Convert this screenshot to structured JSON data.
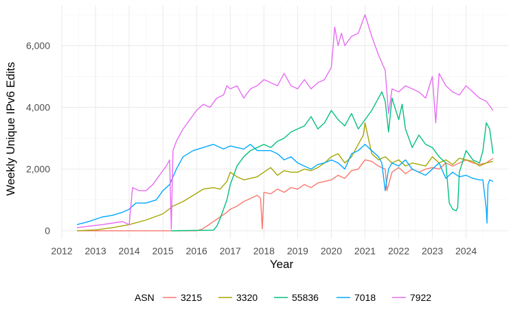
{
  "chart_data": {
    "type": "line",
    "xlabel": "Year",
    "ylabel": "Weekly Unique IPv6 Edits",
    "xlim": [
      2012.0,
      2025.25
    ],
    "ylim": [
      -250,
      7300
    ],
    "x_ticks": [
      2012,
      2013,
      2014,
      2015,
      2016,
      2017,
      2018,
      2019,
      2020,
      2021,
      2022,
      2023,
      2024
    ],
    "x_tick_labels": [
      "2012",
      "2013",
      "2014",
      "2015",
      "2016",
      "2017",
      "2018",
      "2019",
      "2020",
      "2021",
      "2022",
      "2023",
      "2024"
    ],
    "y_ticks": [
      0,
      2000,
      4000,
      6000
    ],
    "y_tick_labels": [
      "0",
      "2,000",
      "4,000",
      "6,000"
    ],
    "grid": true,
    "legend": {
      "title": "ASN",
      "position": "bottom"
    },
    "series": [
      {
        "name": "3215",
        "color": "#F8766D",
        "x": [
          2012.45,
          2016.0,
          2016.15,
          2016.3,
          2016.5,
          2016.7,
          2016.9,
          2017.0,
          2017.2,
          2017.4,
          2017.6,
          2017.8,
          2017.9,
          2017.95,
          2018.0,
          2018.2,
          2018.4,
          2018.6,
          2018.8,
          2019.0,
          2019.2,
          2019.4,
          2019.6,
          2019.8,
          2020.0,
          2020.2,
          2020.4,
          2020.6,
          2020.8,
          2021.0,
          2021.2,
          2021.4,
          2021.6,
          2021.65,
          2021.8,
          2022.0,
          2022.2,
          2022.4,
          2022.6,
          2022.8,
          2023.0,
          2023.2,
          2023.4,
          2023.6,
          2023.8,
          2024.0,
          2024.2,
          2024.4,
          2024.6,
          2024.8
        ],
        "y": [
          0,
          0,
          50,
          150,
          300,
          450,
          600,
          700,
          800,
          950,
          1050,
          1150,
          1050,
          60,
          1250,
          1200,
          1350,
          1250,
          1400,
          1350,
          1500,
          1400,
          1550,
          1600,
          1650,
          1800,
          1700,
          1950,
          2000,
          2300,
          2250,
          2100,
          2000,
          1300,
          1900,
          2050,
          1850,
          2000,
          1900,
          2000,
          2050,
          2000,
          2200,
          2100,
          2200,
          2300,
          2200,
          2150,
          2200,
          2350
        ]
      },
      {
        "name": "3320",
        "color": "#A3A500",
        "x": [
          2012.45,
          2013.0,
          2013.5,
          2014.0,
          2014.5,
          2015.0,
          2015.3,
          2015.6,
          2015.9,
          2016.2,
          2016.5,
          2016.7,
          2016.9,
          2017.0,
          2017.2,
          2017.4,
          2017.6,
          2017.8,
          2018.0,
          2018.2,
          2018.4,
          2018.6,
          2018.8,
          2019.0,
          2019.2,
          2019.4,
          2019.6,
          2019.8,
          2020.0,
          2020.2,
          2020.4,
          2020.6,
          2020.8,
          2020.95,
          2021.0,
          2021.2,
          2021.4,
          2021.6,
          2021.8,
          2022.0,
          2022.2,
          2022.4,
          2022.6,
          2022.8,
          2023.0,
          2023.2,
          2023.4,
          2023.6,
          2023.8,
          2024.0,
          2024.2,
          2024.4,
          2024.6,
          2024.8
        ],
        "y": [
          0,
          30,
          100,
          200,
          350,
          550,
          800,
          950,
          1150,
          1350,
          1400,
          1350,
          1600,
          1900,
          1750,
          1650,
          1700,
          1750,
          1900,
          2050,
          1800,
          1950,
          1900,
          1900,
          2000,
          1950,
          2050,
          2200,
          2400,
          2500,
          2200,
          2400,
          2800,
          3100,
          3500,
          2500,
          2300,
          2400,
          2200,
          2300,
          2100,
          2200,
          2150,
          2100,
          2400,
          2200,
          2300,
          2150,
          2350,
          2300,
          2250,
          2100,
          2200,
          2250
        ]
      },
      {
        "name": "55836",
        "color": "#00BF7D",
        "x": [
          2015.25,
          2016.5,
          2016.6,
          2016.7,
          2016.8,
          2016.9,
          2017.0,
          2017.2,
          2017.4,
          2017.6,
          2017.8,
          2018.0,
          2018.2,
          2018.4,
          2018.6,
          2018.8,
          2019.0,
          2019.2,
          2019.4,
          2019.6,
          2019.8,
          2020.0,
          2020.2,
          2020.4,
          2020.6,
          2020.8,
          2021.0,
          2021.2,
          2021.4,
          2021.5,
          2021.6,
          2021.7,
          2021.8,
          2022.0,
          2022.1,
          2022.2,
          2022.4,
          2022.6,
          2022.8,
          2023.0,
          2023.2,
          2023.4,
          2023.5,
          2023.6,
          2023.7,
          2023.75,
          2023.8,
          2024.0,
          2024.2,
          2024.4,
          2024.5,
          2024.6,
          2024.7,
          2024.8
        ],
        "y": [
          0,
          20,
          150,
          400,
          700,
          1000,
          1500,
          2100,
          2400,
          2600,
          2700,
          2800,
          2700,
          2900,
          3000,
          3200,
          3300,
          3400,
          3700,
          3300,
          3500,
          3900,
          3600,
          3400,
          3800,
          3300,
          3600,
          3900,
          4300,
          4500,
          4200,
          3200,
          4300,
          3600,
          4100,
          3300,
          2700,
          3100,
          2800,
          2700,
          2400,
          2200,
          900,
          700,
          650,
          750,
          1900,
          2600,
          2300,
          2200,
          2600,
          3500,
          3300,
          2500
        ]
      },
      {
        "name": "7018",
        "color": "#00A9FF",
        "x": [
          2012.45,
          2012.8,
          2013.2,
          2013.5,
          2013.8,
          2014.0,
          2014.2,
          2014.5,
          2014.8,
          2015.0,
          2015.2,
          2015.4,
          2015.6,
          2015.9,
          2016.2,
          2016.5,
          2016.8,
          2017.0,
          2017.2,
          2017.4,
          2017.6,
          2017.8,
          2018.0,
          2018.2,
          2018.4,
          2018.6,
          2018.8,
          2019.0,
          2019.2,
          2019.4,
          2019.6,
          2019.8,
          2020.0,
          2020.2,
          2020.4,
          2020.6,
          2020.8,
          2021.0,
          2021.2,
          2021.4,
          2021.5,
          2021.6,
          2021.7,
          2021.8,
          2022.0,
          2022.2,
          2022.4,
          2022.6,
          2022.8,
          2023.0,
          2023.2,
          2023.4,
          2023.6,
          2023.8,
          2024.0,
          2024.2,
          2024.4,
          2024.5,
          2024.6,
          2024.62,
          2024.65,
          2024.7,
          2024.8
        ],
        "y": [
          200,
          300,
          450,
          500,
          600,
          700,
          900,
          900,
          1000,
          1300,
          1500,
          2000,
          2400,
          2600,
          2700,
          2800,
          2650,
          2750,
          2700,
          2650,
          2800,
          2600,
          2600,
          2600,
          2500,
          2300,
          2400,
          2200,
          2100,
          2000,
          2150,
          2200,
          2300,
          2200,
          2000,
          2500,
          2600,
          2800,
          2600,
          2400,
          2200,
          1300,
          2000,
          2200,
          2100,
          2300,
          2000,
          1900,
          1800,
          2000,
          2200,
          1700,
          1900,
          1750,
          1800,
          1700,
          1650,
          1650,
          700,
          250,
          1500,
          1650,
          1600
        ]
      },
      {
        "name": "7922",
        "color": "#E76BF3",
        "x": [
          2012.45,
          2012.8,
          2013.2,
          2013.5,
          2013.8,
          2014.0,
          2014.1,
          2014.3,
          2014.5,
          2014.7,
          2014.9,
          2015.1,
          2015.2,
          2015.25,
          2015.3,
          2015.4,
          2015.6,
          2015.8,
          2016.0,
          2016.2,
          2016.4,
          2016.6,
          2016.8,
          2016.9,
          2017.0,
          2017.2,
          2017.4,
          2017.6,
          2017.8,
          2018.0,
          2018.2,
          2018.4,
          2018.6,
          2018.8,
          2019.0,
          2019.2,
          2019.4,
          2019.6,
          2019.8,
          2020.0,
          2020.1,
          2020.2,
          2020.3,
          2020.4,
          2020.6,
          2020.8,
          2021.0,
          2021.2,
          2021.4,
          2021.6,
          2021.7,
          2021.8,
          2022.0,
          2022.2,
          2022.4,
          2022.6,
          2022.8,
          2023.0,
          2023.1,
          2023.2,
          2023.4,
          2023.6,
          2023.8,
          2024.0,
          2024.2,
          2024.4,
          2024.6,
          2024.8
        ],
        "y": [
          100,
          150,
          200,
          250,
          300,
          200,
          1400,
          1300,
          1300,
          1500,
          1800,
          2100,
          2300,
          50,
          2600,
          2900,
          3300,
          3600,
          3900,
          4100,
          4000,
          4300,
          4400,
          4700,
          4600,
          4700,
          4300,
          4600,
          4700,
          4900,
          4800,
          4700,
          5100,
          4700,
          4600,
          4900,
          4600,
          4800,
          4900,
          5300,
          6600,
          6000,
          6400,
          6000,
          6300,
          6400,
          7000,
          6300,
          5700,
          5200,
          3800,
          4600,
          4500,
          4700,
          4600,
          4500,
          4300,
          5000,
          3500,
          5100,
          4700,
          4500,
          4400,
          4700,
          4500,
          4300,
          4200,
          3900
        ]
      }
    ]
  }
}
